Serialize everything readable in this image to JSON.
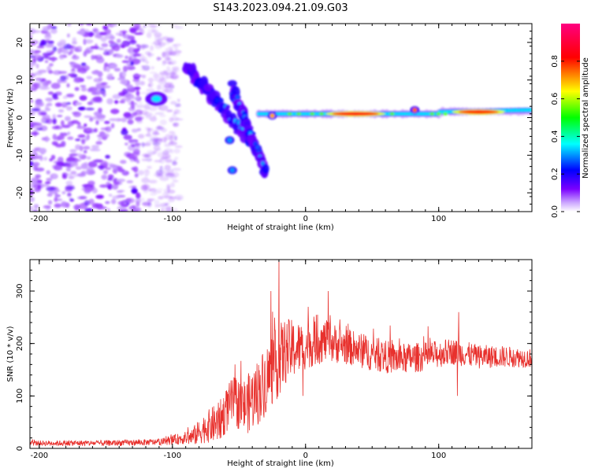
{
  "figure": {
    "title": "S143.2023.094.21.09.G03"
  },
  "colors": {
    "snr_line": "#e8312d",
    "background": "#ffffff",
    "axis": "#000000"
  },
  "chart_data": [
    {
      "type": "heatmap",
      "title": "S143.2023.094.21.09.G03",
      "xlabel": "Height of straight line (km)",
      "ylabel": "Frequency (Hz)",
      "xlim": [
        -207,
        170
      ],
      "ylim": [
        -25,
        25
      ],
      "x_ticks": [
        -200,
        -100,
        0,
        100
      ],
      "y_ticks": [
        -20,
        -10,
        0,
        10,
        20
      ],
      "colorbar": {
        "label": "Normalized spectral amplitude",
        "range": [
          0,
          1
        ],
        "ticks": [
          "0.0",
          "0.2",
          "0.4",
          "0.6",
          "0.8"
        ],
        "tick_values": [
          0,
          0.2,
          0.4,
          0.6,
          0.8
        ],
        "colormap": [
          "#ffffff",
          "#7a00ff",
          "#0000ff",
          "#00ffff",
          "#00ff00",
          "#ffff00",
          "#ff0000",
          "#ff0080"
        ]
      },
      "features": [
        {
          "kind": "scatter-noise",
          "x_range": [
            -207,
            -95
          ],
          "freq_range": [
            -25,
            25
          ],
          "amplitude": 0.08
        },
        {
          "kind": "blob",
          "x": -112,
          "freq": 5,
          "amplitude": 0.35
        },
        {
          "kind": "dispersive-track",
          "x_range": [
            -90,
            -42
          ],
          "freq_range": [
            14,
            -6
          ],
          "amplitude": 0.3
        },
        {
          "kind": "dispersive-track",
          "x_range": [
            -55,
            -30
          ],
          "freq_range": [
            8,
            -15
          ],
          "amplitude": 0.25
        },
        {
          "kind": "spot",
          "x": -57,
          "freq": -6,
          "amplitude": 0.3
        },
        {
          "kind": "spot",
          "x": -55,
          "freq": -14,
          "amplitude": 0.3
        },
        {
          "kind": "band",
          "x_range": [
            -35,
            170
          ],
          "freq": 1,
          "amplitude": 0.6
        },
        {
          "kind": "band-peak",
          "x_range": [
            20,
            55
          ],
          "freq": 1,
          "amplitude": 0.85
        },
        {
          "kind": "band-peak",
          "x_range": [
            115,
            145
          ],
          "freq": 1.5,
          "amplitude": 0.8
        },
        {
          "kind": "spot",
          "x": 82,
          "freq": 2,
          "amplitude": 0.75
        },
        {
          "kind": "spot",
          "x": -25,
          "freq": 0.5,
          "amplitude": 0.7
        }
      ]
    },
    {
      "type": "line",
      "xlabel": "Height of straight line (km)",
      "ylabel": "SNR (10 * v/v)",
      "xlim": [
        -207,
        170
      ],
      "ylim": [
        0,
        360
      ],
      "x_ticks": [
        -200,
        -100,
        0,
        100
      ],
      "y_ticks": [
        0,
        100,
        200,
        300
      ],
      "series": [
        {
          "color": "#e8312d",
          "profile": [
            {
              "x": -207,
              "y": 10
            },
            {
              "x": -150,
              "y": 10
            },
            {
              "x": -110,
              "y": 12
            },
            {
              "x": -95,
              "y": 18
            },
            {
              "x": -85,
              "y": 22
            },
            {
              "x": -75,
              "y": 40
            },
            {
              "x": -65,
              "y": 50
            },
            {
              "x": -55,
              "y": 90
            },
            {
              "x": -45,
              "y": 80
            },
            {
              "x": -35,
              "y": 110
            },
            {
              "x": -25,
              "y": 150
            },
            {
              "x": -15,
              "y": 185
            },
            {
              "x": 0,
              "y": 195
            },
            {
              "x": 15,
              "y": 205
            },
            {
              "x": 30,
              "y": 195
            },
            {
              "x": 50,
              "y": 180
            },
            {
              "x": 70,
              "y": 170
            },
            {
              "x": 90,
              "y": 175
            },
            {
              "x": 110,
              "y": 185
            },
            {
              "x": 130,
              "y": 175
            },
            {
              "x": 150,
              "y": 175
            },
            {
              "x": 170,
              "y": 172
            }
          ],
          "noise": [
            {
              "x": -207,
              "amp": 5
            },
            {
              "x": -110,
              "amp": 6
            },
            {
              "x": -90,
              "amp": 12
            },
            {
              "x": -70,
              "amp": 35
            },
            {
              "x": -50,
              "amp": 50
            },
            {
              "x": -35,
              "amp": 65
            },
            {
              "x": -20,
              "amp": 70
            },
            {
              "x": 0,
              "amp": 45
            },
            {
              "x": 30,
              "amp": 35
            },
            {
              "x": 170,
              "amp": 18
            }
          ],
          "peaks": [
            {
              "x": -20,
              "y": 360
            },
            {
              "x": -26,
              "y": 300
            },
            {
              "x": -53,
              "y": 160
            },
            {
              "x": 2,
              "y": 270
            },
            {
              "x": 9,
              "y": 255
            },
            {
              "x": 17,
              "y": 300
            },
            {
              "x": 115,
              "y": 260
            },
            {
              "x": 114,
              "y": 100
            },
            {
              "x": -2,
              "y": 100
            }
          ]
        }
      ]
    }
  ]
}
